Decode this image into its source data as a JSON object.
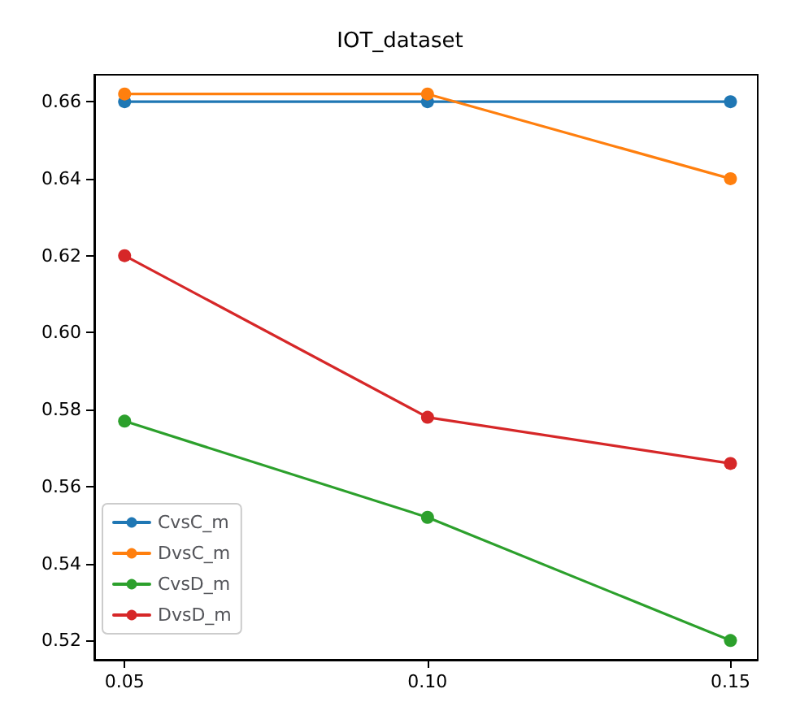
{
  "chart_data": {
    "type": "line",
    "title": "IOT_dataset",
    "x": [
      0.05,
      0.1,
      0.15
    ],
    "series": [
      {
        "name": "CvsC_m",
        "color": "#1f77b4",
        "values": [
          0.66,
          0.66,
          0.66
        ]
      },
      {
        "name": "DvsC_m",
        "color": "#ff7f0e",
        "values": [
          0.662,
          0.662,
          0.64
        ]
      },
      {
        "name": "CvsD_m",
        "color": "#2ca02c",
        "values": [
          0.577,
          0.552,
          0.52
        ]
      },
      {
        "name": "DvsD_m",
        "color": "#d62728",
        "values": [
          0.62,
          0.578,
          0.566
        ]
      }
    ],
    "xlim": [
      0.045,
      0.1545
    ],
    "xticks": [
      {
        "value": 0.05,
        "label": "0.05"
      },
      {
        "value": 0.1,
        "label": "0.10"
      },
      {
        "value": 0.15,
        "label": "0.15"
      }
    ],
    "ylim": [
      0.515,
      0.667
    ],
    "yticks": [
      {
        "value": 0.52,
        "label": "0.52"
      },
      {
        "value": 0.54,
        "label": "0.54"
      },
      {
        "value": 0.56,
        "label": "0.56"
      },
      {
        "value": 0.58,
        "label": "0.58"
      },
      {
        "value": 0.6,
        "label": "0.60"
      },
      {
        "value": 0.62,
        "label": "0.62"
      },
      {
        "value": 0.64,
        "label": "0.64"
      },
      {
        "value": 0.66,
        "label": "0.66"
      }
    ],
    "grid": false,
    "legend": "bottom left",
    "marker": "circle"
  }
}
